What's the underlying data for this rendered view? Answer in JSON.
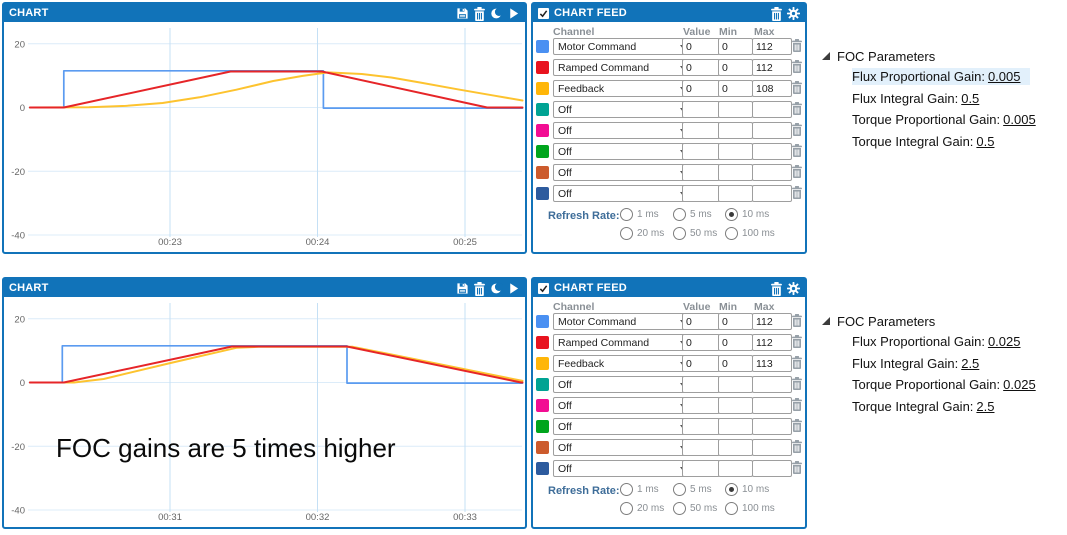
{
  "colors": {
    "header_blue": "#1173b9",
    "panel_border": "#1173b9",
    "grid_horizontal": "#dcecf9",
    "grid_vertical": "#c5e0f5",
    "axis_text": "#666666",
    "highlight_row": "#e2f0fb",
    "series_blue": "#5b9bf0",
    "series_red": "#e62528",
    "series_yellow": "#fdc32f"
  },
  "top": {
    "chart": {
      "title": "CHART",
      "icons": [
        "save-icon",
        "trash-icon",
        "moon-icon",
        "play-icon"
      ]
    },
    "feed": {
      "title": "CHART FEED",
      "checkbox_checked": true,
      "icons": [
        "trash-icon",
        "gear-icon"
      ],
      "columns": [
        "Channel",
        "Value",
        "Min",
        "Max"
      ],
      "rows": [
        {
          "color": "#4a90f2",
          "channel": "Motor Command",
          "value": "0",
          "min": "0",
          "max": "112"
        },
        {
          "color": "#e8131f",
          "channel": "Ramped Command",
          "value": "0",
          "min": "0",
          "max": "112"
        },
        {
          "color": "#ffb608",
          "channel": "Feedback",
          "value": "0",
          "min": "0",
          "max": "108"
        },
        {
          "color": "#00a393",
          "channel": "Off",
          "value": "",
          "min": "",
          "max": ""
        },
        {
          "color": "#f20d93",
          "channel": "Off",
          "value": "",
          "min": "",
          "max": ""
        },
        {
          "color": "#00a51d",
          "channel": "Off",
          "value": "",
          "min": "",
          "max": ""
        },
        {
          "color": "#cc5b2d",
          "channel": "Off",
          "value": "",
          "min": "",
          "max": ""
        },
        {
          "color": "#2d5b9e",
          "channel": "Off",
          "value": "",
          "min": "",
          "max": ""
        }
      ],
      "refresh_label": "Refresh Rate:",
      "refresh_options": [
        {
          "label": "1 ms",
          "selected": false
        },
        {
          "label": "5 ms",
          "selected": false
        },
        {
          "label": "10 ms",
          "selected": true
        },
        {
          "label": "20 ms",
          "selected": false
        },
        {
          "label": "50 ms",
          "selected": false
        },
        {
          "label": "100 ms",
          "selected": false
        }
      ]
    },
    "foc": {
      "title": "FOC Parameters",
      "items": [
        {
          "label": "Flux Proportional Gain:",
          "value": "0.005",
          "highlighted": true
        },
        {
          "label": "Flux Integral Gain:",
          "value": "0.5",
          "highlighted": false
        },
        {
          "label": "Torque Proportional Gain:",
          "value": "0.005",
          "highlighted": false
        },
        {
          "label": "Torque Integral Gain:",
          "value": "0.5",
          "highlighted": false
        }
      ]
    }
  },
  "bottom": {
    "chart": {
      "title": "CHART",
      "icons": [
        "save-icon",
        "trash-icon",
        "moon-icon",
        "play-icon"
      ]
    },
    "feed": {
      "title": "CHART FEED",
      "checkbox_checked": true,
      "icons": [
        "trash-icon",
        "gear-icon"
      ],
      "columns": [
        "Channel",
        "Value",
        "Min",
        "Max"
      ],
      "rows": [
        {
          "color": "#4a90f2",
          "channel": "Motor Command",
          "value": "0",
          "min": "0",
          "max": "112"
        },
        {
          "color": "#e8131f",
          "channel": "Ramped Command",
          "value": "0",
          "min": "0",
          "max": "112"
        },
        {
          "color": "#ffb608",
          "channel": "Feedback",
          "value": "0",
          "min": "0",
          "max": "113"
        },
        {
          "color": "#00a393",
          "channel": "Off",
          "value": "",
          "min": "",
          "max": ""
        },
        {
          "color": "#f20d93",
          "channel": "Off",
          "value": "",
          "min": "",
          "max": ""
        },
        {
          "color": "#00a51d",
          "channel": "Off",
          "value": "",
          "min": "",
          "max": ""
        },
        {
          "color": "#cc5b2d",
          "channel": "Off",
          "value": "",
          "min": "",
          "max": ""
        },
        {
          "color": "#2d5b9e",
          "channel": "Off",
          "value": "",
          "min": "",
          "max": ""
        }
      ],
      "refresh_label": "Refresh Rate:",
      "refresh_options": [
        {
          "label": "1 ms",
          "selected": false
        },
        {
          "label": "5 ms",
          "selected": false
        },
        {
          "label": "10 ms",
          "selected": true
        },
        {
          "label": "20 ms",
          "selected": false
        },
        {
          "label": "50 ms",
          "selected": false
        },
        {
          "label": "100 ms",
          "selected": false
        }
      ]
    },
    "foc": {
      "title": "FOC Parameters",
      "items": [
        {
          "label": "Flux Proportional Gain:",
          "value": "0.025",
          "highlighted": false
        },
        {
          "label": "Flux Integral Gain:",
          "value": "2.5",
          "highlighted": false
        },
        {
          "label": "Torque Proportional Gain:",
          "value": "0.025",
          "highlighted": false
        },
        {
          "label": "Torque Integral Gain:",
          "value": "2.5",
          "highlighted": false
        }
      ]
    }
  },
  "chart_data": [
    {
      "type": "line",
      "title": "CHART",
      "x_ticks": [
        {
          "t": 23,
          "label": "00:23"
        },
        {
          "t": 24,
          "label": "00:24"
        },
        {
          "t": 25,
          "label": "00:25"
        }
      ],
      "y_ticks": [
        20,
        0,
        -20,
        -40
      ],
      "xlim": [
        22.05,
        25.39
      ],
      "ylim": [
        -41,
        25.5
      ],
      "grid": true,
      "legend": "none",
      "series": [
        {
          "name": "Motor Command",
          "color": "#5b9bf0",
          "points": [
            [
              22.05,
              0
            ],
            [
              22.28,
              0
            ],
            [
              22.28,
              11.5
            ],
            [
              24.04,
              11.5
            ],
            [
              24.04,
              -0.2
            ],
            [
              25.39,
              -0.2
            ]
          ]
        },
        {
          "name": "Feedback",
          "color": "#fdc32f",
          "points": [
            [
              22.05,
              0
            ],
            [
              22.45,
              0.1
            ],
            [
              22.7,
              0.5
            ],
            [
              22.95,
              1.4
            ],
            [
              23.2,
              3.2
            ],
            [
              23.45,
              5.6
            ],
            [
              23.7,
              8.3
            ],
            [
              23.9,
              9.9
            ],
            [
              24.07,
              11.0
            ],
            [
              24.3,
              10.5
            ],
            [
              24.5,
              9.4
            ],
            [
              24.7,
              7.8
            ],
            [
              24.95,
              5.7
            ],
            [
              25.2,
              3.7
            ],
            [
              25.39,
              2.2
            ]
          ]
        },
        {
          "name": "Ramped Command",
          "color": "#e62528",
          "points": [
            [
              22.05,
              0
            ],
            [
              22.28,
              0
            ],
            [
              23.41,
              11.3
            ],
            [
              24.03,
              11.3
            ],
            [
              25.15,
              0
            ],
            [
              25.39,
              0
            ]
          ]
        }
      ]
    },
    {
      "type": "line",
      "title": "CHART",
      "annotation": "FOC gains are 5 times higher",
      "x_ticks": [
        {
          "t": 31,
          "label": "00:31"
        },
        {
          "t": 32,
          "label": "00:32"
        },
        {
          "t": 33,
          "label": "00:33"
        }
      ],
      "y_ticks": [
        20,
        0,
        -20,
        -40
      ],
      "xlim": [
        30.05,
        33.39
      ],
      "ylim": [
        -41,
        25.5
      ],
      "grid": true,
      "legend": "none",
      "series": [
        {
          "name": "Motor Command",
          "color": "#5b9bf0",
          "points": [
            [
              30.05,
              0
            ],
            [
              30.27,
              0
            ],
            [
              30.27,
              11.5
            ],
            [
              32.2,
              11.5
            ],
            [
              32.2,
              -0.2
            ],
            [
              33.39,
              -0.2
            ]
          ]
        },
        {
          "name": "Feedback",
          "color": "#fdc32f",
          "points": [
            [
              30.05,
              0
            ],
            [
              30.35,
              0
            ],
            [
              30.55,
              1.1
            ],
            [
              31.0,
              6.1
            ],
            [
              31.45,
              10.9
            ],
            [
              31.6,
              11.2
            ],
            [
              32.24,
              11.2
            ],
            [
              33.39,
              0.5
            ]
          ]
        },
        {
          "name": "Ramped Command",
          "color": "#e62528",
          "points": [
            [
              30.05,
              0
            ],
            [
              30.28,
              0
            ],
            [
              31.42,
              11.3
            ],
            [
              32.2,
              11.3
            ],
            [
              33.38,
              0
            ],
            [
              33.39,
              0
            ]
          ]
        }
      ]
    }
  ]
}
